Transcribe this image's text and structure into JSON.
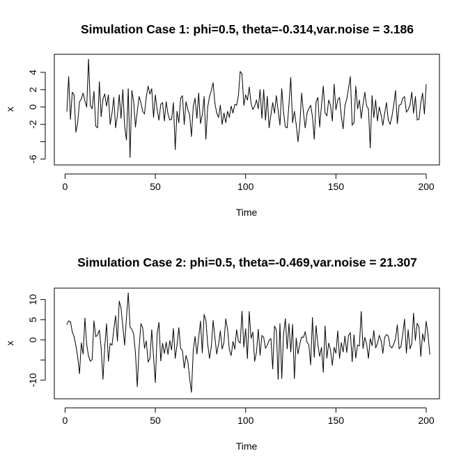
{
  "chart_data": [
    {
      "type": "line",
      "title": "Simulation Case 1: phi=0.5, theta=-0.314,var.noise = 3.186",
      "xlabel": "Time",
      "ylabel": "x",
      "xlim": [
        1,
        200
      ],
      "ylim": [
        -6.2,
        5.6
      ],
      "xticks": [
        0,
        50,
        100,
        150,
        200
      ],
      "xtick_labels": [
        "0",
        "50",
        "100",
        "150",
        "200"
      ],
      "yticks": [
        -6,
        -4,
        -2,
        0,
        2,
        4
      ],
      "ytick_labels": [
        "-6",
        "",
        "-2",
        "0",
        "2",
        "4"
      ],
      "grid": false,
      "series": [
        {
          "x_start": 1,
          "values": [
            -0.5,
            3.5,
            -1.4,
            1.7,
            1.4,
            -2.9,
            -1.8,
            0.6,
            0.9,
            1.6,
            0.7,
            0.0,
            5.5,
            0.2,
            -0.2,
            1.8,
            -2.2,
            -2.4,
            2.9,
            -1.1,
            0.9,
            1.5,
            0.1,
            1.4,
            -2.0,
            -0.7,
            1.1,
            -2.4,
            -1.0,
            1.4,
            -1.3,
            2.0,
            -2.2,
            -3.8,
            2.1,
            -5.8,
            1.9,
            0.6,
            -2.3,
            -0.5,
            1.2,
            0.5,
            -0.5,
            -0.8,
            1.2,
            2.4,
            1.5,
            2.1,
            -1.2,
            1.4,
            -0.3,
            -1.5,
            0.3,
            0.5,
            -1.6,
            0.6,
            -0.8,
            -1.5,
            -1.4,
            0.5,
            -4.9,
            -0.5,
            -1.8,
            1.0,
            1.3,
            -2.0,
            0.6,
            -0.3,
            -0.9,
            -3.4,
            0.1,
            1.0,
            -1.3,
            1.6,
            -1.9,
            -0.9,
            1.2,
            -3.7,
            0.0,
            1.2,
            1.9,
            2.8,
            0.4,
            -0.7,
            -1.2,
            0.2,
            -2.0,
            -0.7,
            -1.8,
            -0.5,
            -1.2,
            0.1,
            -0.7,
            0.3,
            0.2,
            1.3,
            4.1,
            3.8,
            0.2,
            1.4,
            0.8,
            2.3,
            0.4,
            -0.3,
            0.1,
            0.8,
            -0.2,
            2.0,
            -1.3,
            2.0,
            -1.5,
            1.2,
            -2.4,
            -0.9,
            0.5,
            -0.7,
            1.3,
            -0.4,
            -2.1,
            2.1,
            -0.6,
            -2.3,
            -2.4,
            0.3,
            3.4,
            -1.8,
            -0.5,
            -2.0,
            -4.0,
            -2.0,
            1.6,
            -0.6,
            -2.4,
            -0.7,
            -0.2,
            0.2,
            -1.1,
            -3.7,
            0.6,
            1.1,
            -2.3,
            0.2,
            2.4,
            -0.7,
            -1.0,
            0.8,
            0.2,
            -1.6,
            2.6,
            -0.3,
            0.8,
            1.1,
            -1.1,
            -2.5,
            0.2,
            0.9,
            2.2,
            3.5,
            -2.1,
            -1.8,
            2.4,
            -0.2,
            0.8,
            -1.3,
            0.3,
            1.7,
            0.1,
            -0.2,
            -4.7,
            1.3,
            -1.2,
            0.8,
            -1.6,
            0.0,
            -0.9,
            -2.1,
            -0.7,
            0.5,
            -1.5,
            -2.0,
            -1.1,
            0.2,
            1.9,
            -1.9,
            0.2,
            0.3,
            1.0,
            1.2,
            -0.6,
            -0.3,
            0.2,
            1.7,
            -0.7,
            1.2,
            -1.5,
            -1.4,
            0.5,
            1.6,
            -0.8,
            2.6
          ]
        }
      ]
    },
    {
      "type": "line",
      "title": "Simulation Case 2: phi=0.5, theta=-0.469,var.noise = 21.307",
      "xlabel": "Time",
      "ylabel": "x",
      "xlim": [
        1,
        200
      ],
      "ylim": [
        -13.6,
        11.8
      ],
      "xticks": [
        0,
        50,
        100,
        150,
        200
      ],
      "xtick_labels": [
        "0",
        "50",
        "100",
        "150",
        "200"
      ],
      "yticks": [
        -10,
        -5,
        0,
        5,
        10
      ],
      "ytick_labels": [
        "-10",
        "",
        "0",
        "5",
        "10"
      ],
      "grid": false,
      "series": [
        {
          "x_start": 1,
          "values": [
            3.8,
            4.7,
            4.5,
            2.0,
            0.8,
            -1.4,
            -4.2,
            -8.4,
            -0.8,
            -3.5,
            5.4,
            -1.2,
            -4.0,
            -5.3,
            -4.9,
            4.7,
            0.8,
            1.2,
            2.4,
            -2.0,
            -9.8,
            -1.5,
            4.0,
            -5.3,
            -0.9,
            -1.3,
            2.6,
            6.0,
            -0.3,
            9.6,
            7.9,
            3.3,
            -1.3,
            5.4,
            11.6,
            3.2,
            2.6,
            1.4,
            -3.4,
            -11.6,
            -2.0,
            4.0,
            3.0,
            -2.1,
            -0.3,
            -5.5,
            -4.6,
            2.5,
            -4.2,
            -10.6,
            1.6,
            4.3,
            -5.2,
            -0.9,
            -3.4,
            -0.6,
            -3.6,
            -0.2,
            -2.5,
            2.8,
            -4.6,
            -1.3,
            3.0,
            -2.1,
            -2.7,
            -7.0,
            -3.9,
            -5.4,
            -9.5,
            -13.0,
            -2.6,
            0.8,
            -3.5,
            0.6,
            4.6,
            -3.2,
            6.3,
            4.8,
            -1.1,
            -4.6,
            -1.7,
            4.8,
            0.5,
            -3.5,
            -1.1,
            2.2,
            -2.3,
            -0.6,
            5.2,
            2.6,
            -2.5,
            -3.9,
            -0.4,
            -2.3,
            2.5,
            -0.3,
            -0.8,
            7.1,
            -1.8,
            2.7,
            -4.6,
            7.0,
            0.4,
            1.9,
            -5.3,
            -3.1,
            2.6,
            -3.8,
            1.1,
            0.6,
            -2.1,
            -1.3,
            -0.1,
            0.3,
            -7.2,
            3.4,
            2.5,
            -9.8,
            4.0,
            -9.6,
            1.4,
            5.2,
            -2.2,
            4.0,
            -3.0,
            3.8,
            -9.6,
            0.4,
            -3.5,
            -1.0,
            0.7,
            0.6,
            2.0,
            -0.6,
            -1.2,
            -6.2,
            5.5,
            -4.3,
            3.5,
            -1.2,
            -4.1,
            -1.9,
            -8.0,
            3.4,
            -4.5,
            -0.8,
            -2.5,
            -6.3,
            -1.9,
            -3.3,
            2.2,
            -4.6,
            -0.7,
            -3.0,
            0.9,
            -3.1,
            1.1,
            1.8,
            -5.4,
            1.2,
            -4.5,
            -1.3,
            -1.5,
            7.0,
            -2.1,
            0.6,
            -1.0,
            -4.6,
            0.3,
            -1.4,
            2.3,
            -2.0,
            -0.9,
            1.1,
            -0.1,
            -3.3,
            0.6,
            1.3,
            1.0,
            -1.6,
            -2.0,
            -1.1,
            0.3,
            3.7,
            -2.2,
            -1.7,
            1.4,
            5.1,
            -3.3,
            2.5,
            -2.2,
            -1.0,
            6.6,
            -0.1,
            4.1,
            3.2,
            -4.1,
            1.5,
            -0.4,
            4.6,
            1.3,
            -3.6
          ]
        }
      ]
    }
  ]
}
